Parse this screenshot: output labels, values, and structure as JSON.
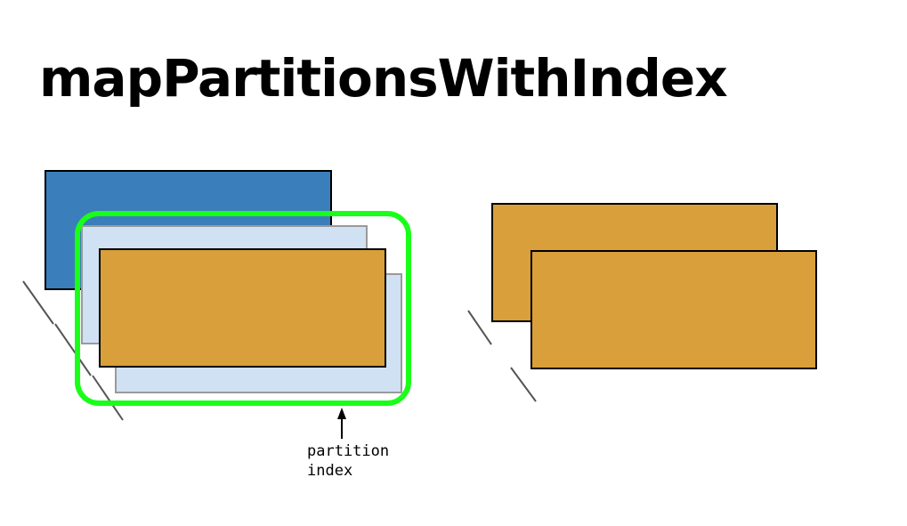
{
  "title": "mapPartitionsWithIndex",
  "annotation": {
    "line1": "partition",
    "line2": "index"
  },
  "colors": {
    "partition_blue": "#3a7ebb",
    "partition_light_blue": "#cfe1f2",
    "partition_orange": "#d89f3a",
    "highlight_green": "#19ff19",
    "slash_gray": "#555555"
  }
}
